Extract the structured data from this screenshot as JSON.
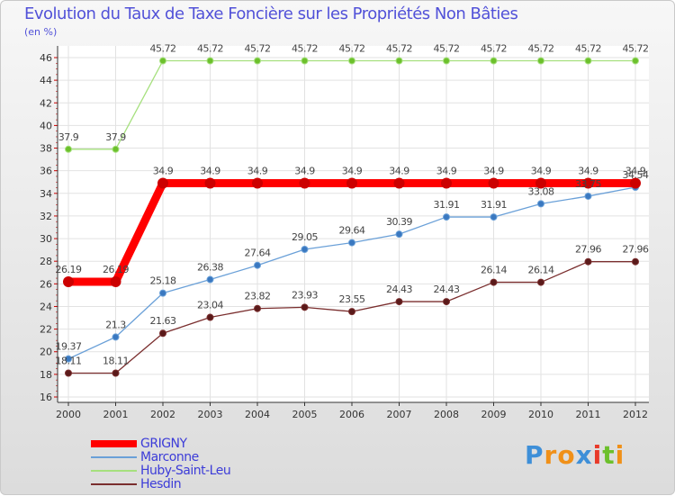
{
  "chart_data": {
    "type": "line",
    "title": "Evolution du Taux de Taxe Foncière sur les Propriétés Non Bâties",
    "ylabel": "(en %)",
    "xlabel": "",
    "ylim": [
      16,
      46
    ],
    "yticks": [
      16,
      18,
      20,
      22,
      24,
      26,
      28,
      30,
      32,
      34,
      36,
      38,
      40,
      42,
      44,
      46
    ],
    "categories": [
      "2000",
      "2001",
      "2002",
      "2003",
      "2004",
      "2005",
      "2006",
      "2007",
      "2008",
      "2009",
      "2010",
      "2011",
      "2012"
    ],
    "grid": true,
    "series": [
      {
        "name": "GRIGNY",
        "color": "#ff0000",
        "marker_color": "#cc0000",
        "values": [
          26.19,
          26.19,
          34.9,
          34.9,
          34.9,
          34.9,
          34.9,
          34.9,
          34.9,
          34.9,
          34.9,
          34.9,
          34.9
        ],
        "labels": [
          "26.19",
          "26.19",
          "34.9",
          "34.9",
          "34.9",
          "34.9",
          "34.9",
          "34.9",
          "34.9",
          "34.9",
          "34.9",
          "34.9",
          "34.9"
        ]
      },
      {
        "name": "Marconne",
        "color": "#6aa0d8",
        "marker_color": "#3a78c0",
        "values": [
          19.37,
          21.3,
          25.18,
          26.38,
          27.64,
          29.05,
          29.64,
          30.39,
          31.91,
          31.91,
          33.08,
          33.75,
          34.54
        ],
        "labels": [
          "19.37",
          "21.3",
          "25.18",
          "26.38",
          "27.64",
          "29.05",
          "29.64",
          "30.39",
          "31.91",
          "31.91",
          "33.08",
          "33.75",
          "34.54"
        ]
      },
      {
        "name": "Huby-Saint-Leu",
        "color": "#a6e07e",
        "marker_color": "#6cc02c",
        "values": [
          37.9,
          37.9,
          45.72,
          45.72,
          45.72,
          45.72,
          45.72,
          45.72,
          45.72,
          45.72,
          45.72,
          45.72,
          45.72
        ],
        "labels": [
          "37.9",
          "37.9",
          "45.72",
          "45.72",
          "45.72",
          "45.72",
          "45.72",
          "45.72",
          "45.72",
          "45.72",
          "45.72",
          "45.72",
          "45.72"
        ]
      },
      {
        "name": "Hesdin",
        "color": "#7a2e2e",
        "marker_color": "#5a1a1a",
        "values": [
          18.11,
          18.11,
          21.63,
          23.04,
          23.82,
          23.93,
          23.55,
          24.43,
          24.43,
          26.14,
          26.14,
          27.96,
          27.96
        ],
        "labels": [
          "18.11",
          "18.11",
          "21.63",
          "23.04",
          "23.82",
          "23.93",
          "23.55",
          "24.43",
          "24.43",
          "26.14",
          "26.14",
          "27.96",
          "27.96"
        ]
      }
    ],
    "legend_position": "bottom-left"
  },
  "logo": {
    "text": "Proxiti",
    "letters": [
      "P",
      "r",
      "o",
      "x",
      "i",
      "t",
      "i"
    ],
    "colors": [
      "#3e8fd8",
      "#f09018",
      "#f09018",
      "#3e8fd8",
      "#e83a2a",
      "#6cc02c",
      "#f09018"
    ]
  }
}
